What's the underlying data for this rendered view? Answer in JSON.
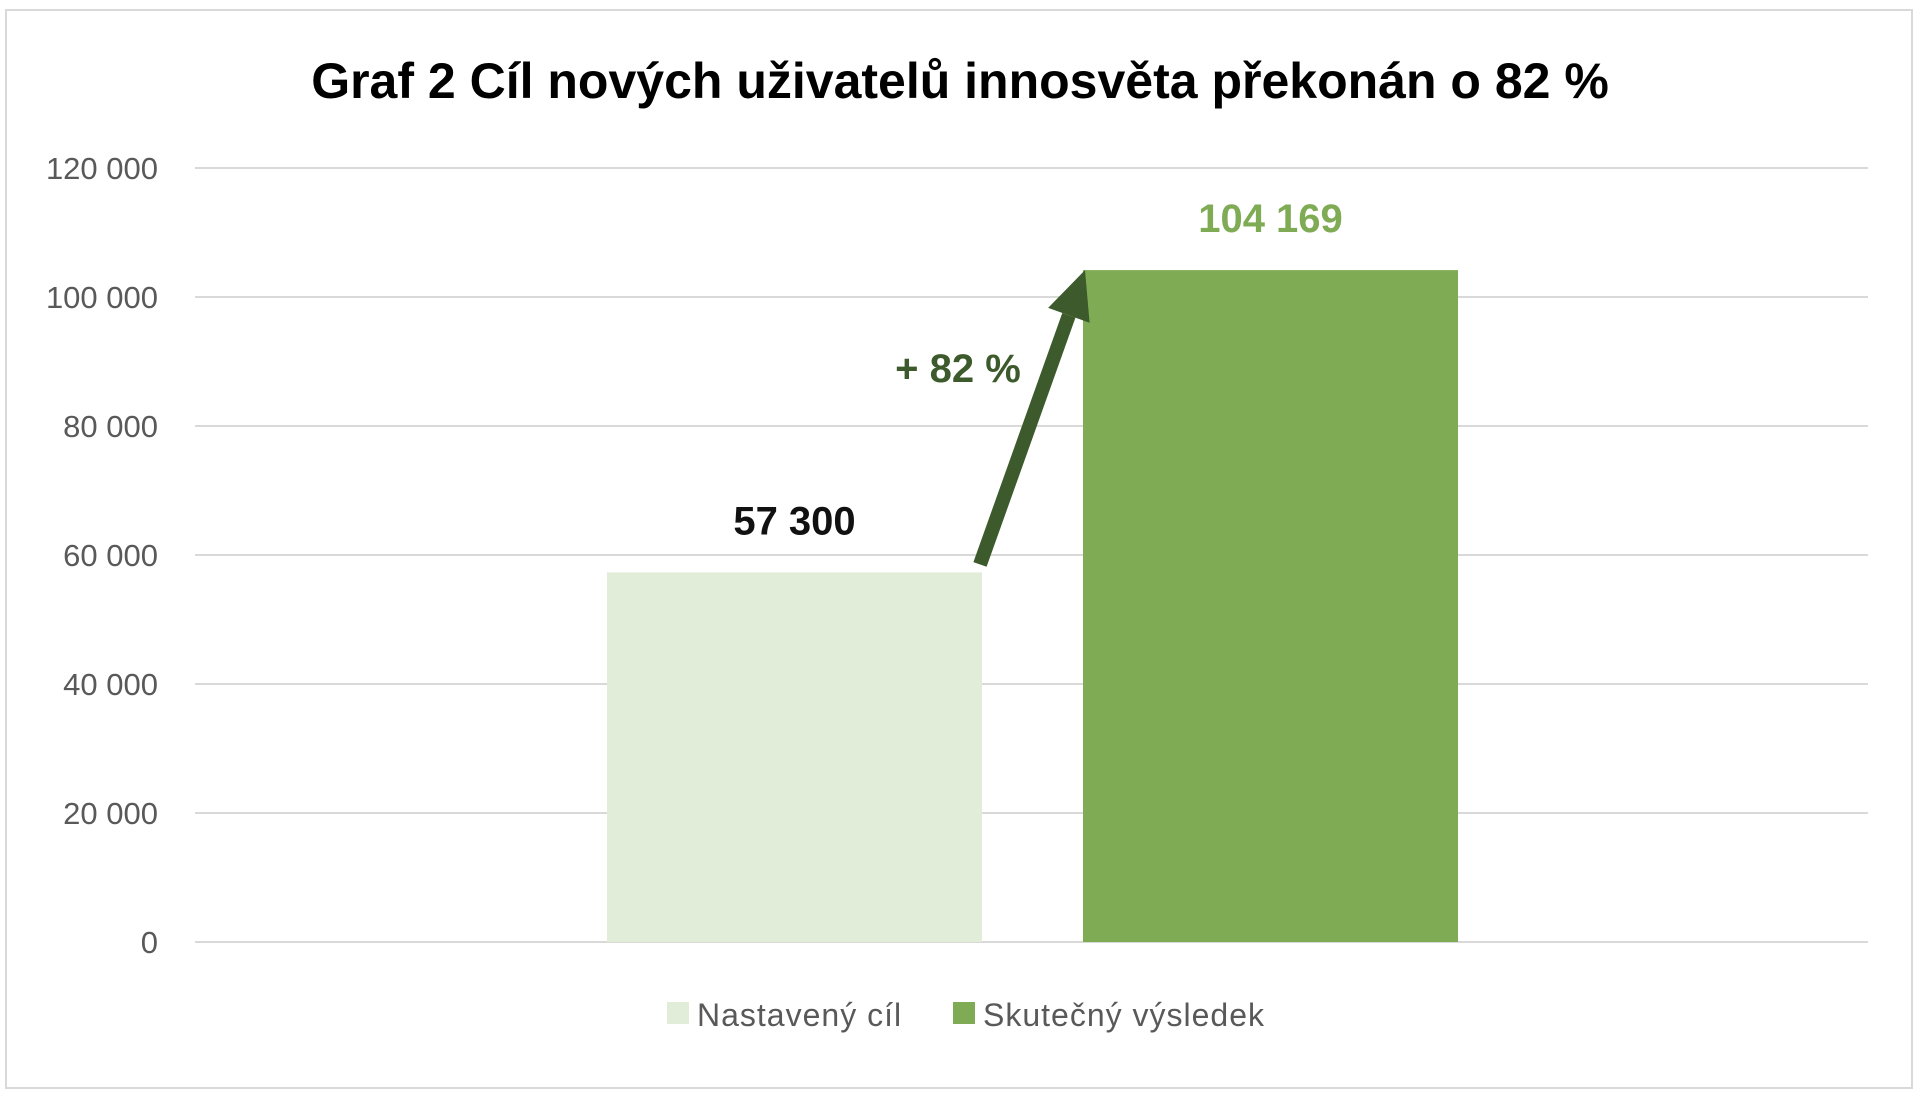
{
  "chart_data": {
    "type": "bar",
    "title": "Graf 2 Cíl nových uživatelů innosvěta překonán o 82 %",
    "xlabel": "",
    "ylabel": "",
    "ylim": [
      0,
      120000
    ],
    "yticks": [
      {
        "value": 0,
        "label": "0"
      },
      {
        "value": 20000,
        "label": "20 000"
      },
      {
        "value": 40000,
        "label": "40 000"
      },
      {
        "value": 60000,
        "label": "60 000"
      },
      {
        "value": 80000,
        "label": "80 000"
      },
      {
        "value": 100000,
        "label": "100 000"
      },
      {
        "value": 120000,
        "label": "120 000"
      }
    ],
    "grid": true,
    "legend_position": "bottom",
    "series": [
      {
        "name": "Nastavený cíl",
        "value": 57300,
        "label": "57 300",
        "color": "#e2edd9",
        "label_color": "#111111"
      },
      {
        "name": "Skutečný výsledek",
        "value": 104169,
        "label": "104 169",
        "color": "#7fab55",
        "label_color": "#7fab55"
      }
    ],
    "annotation": {
      "text": "+ 82 %",
      "color": "#3c5a2b"
    }
  }
}
